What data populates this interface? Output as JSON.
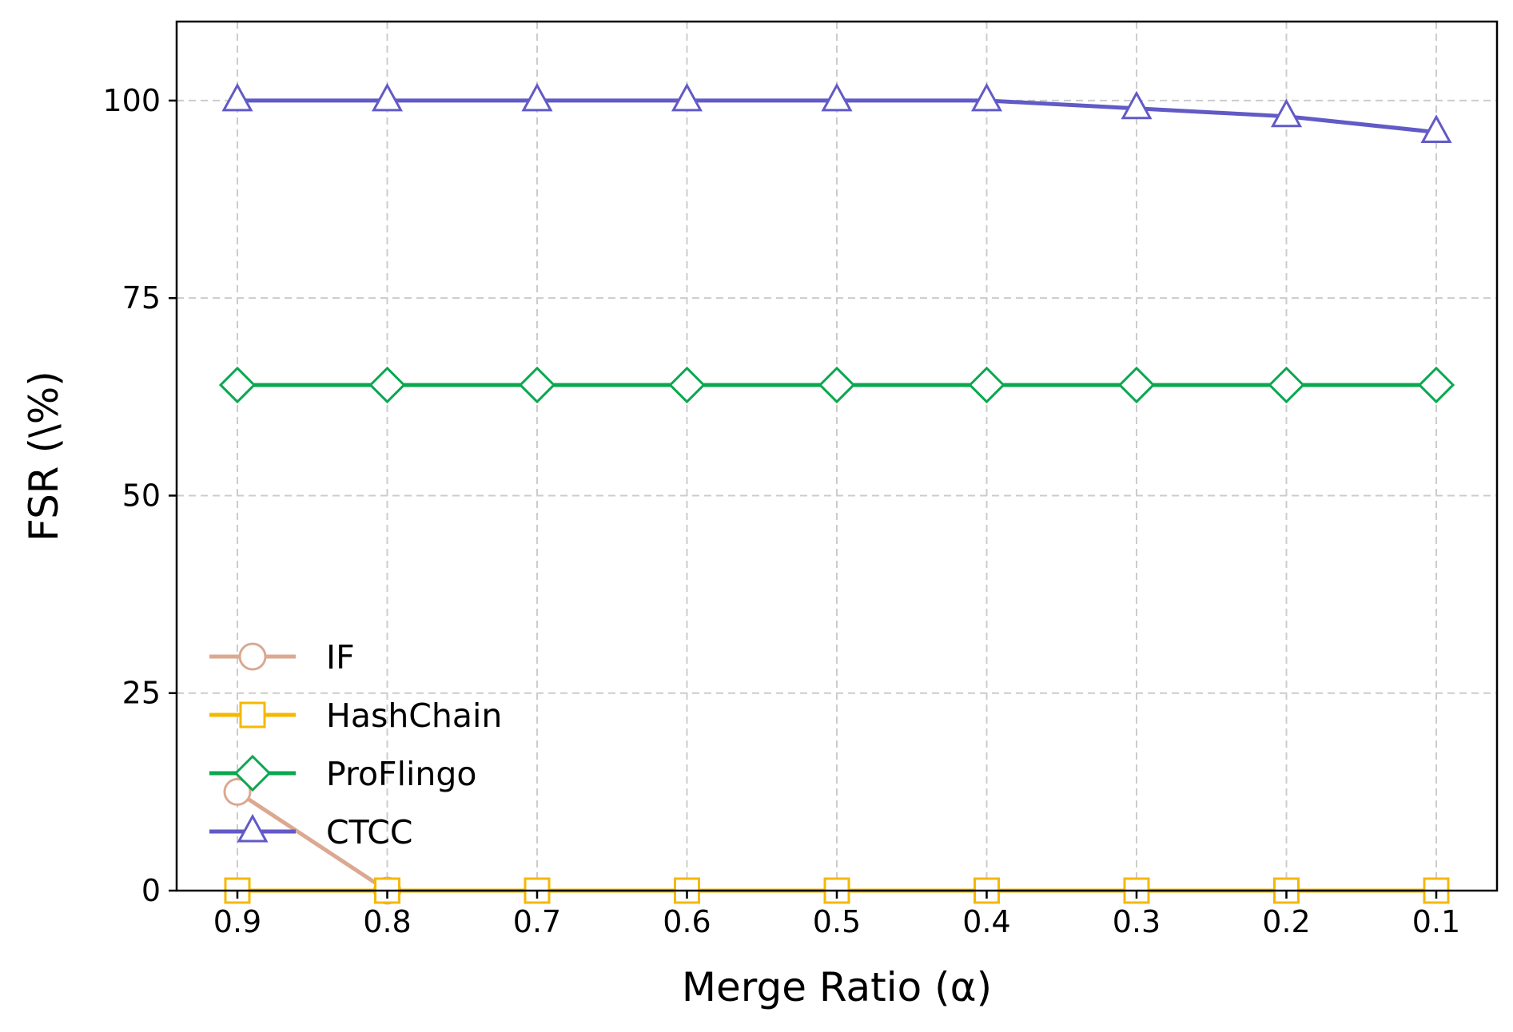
{
  "chart_data": {
    "type": "line",
    "xlabel": "Merge Ratio (α)",
    "ylabel": "FSR (\\%)",
    "x": [
      0.9,
      0.8,
      0.7,
      0.6,
      0.5,
      0.4,
      0.3,
      0.2,
      0.1
    ],
    "x_tick_labels": [
      "0.9",
      "0.8",
      "0.7",
      "0.6",
      "0.5",
      "0.4",
      "0.3",
      "0.2",
      "0.1"
    ],
    "x_reversed": true,
    "ylim": [
      0,
      110
    ],
    "y_ticks": [
      0,
      25,
      50,
      75,
      100
    ],
    "y_tick_labels": [
      "0",
      "25",
      "50",
      "75",
      "100"
    ],
    "grid": true,
    "legend_position": "lower-left",
    "series": [
      {
        "name": "IF",
        "color": "#dba891",
        "marker": "circle",
        "values": [
          12.5,
          0,
          null,
          null,
          null,
          null,
          null,
          null,
          null
        ]
      },
      {
        "name": "HashChain",
        "color": "#f5b800",
        "marker": "square",
        "values": [
          0,
          0,
          0,
          0,
          0,
          0,
          0,
          0,
          0
        ]
      },
      {
        "name": "ProFlingo",
        "color": "#0aa84f",
        "marker": "diamond",
        "values": [
          64,
          64,
          64,
          64,
          64,
          64,
          64,
          64,
          64
        ]
      },
      {
        "name": "CTCC",
        "color": "#625ac6",
        "marker": "triangle",
        "values": [
          100,
          100,
          100,
          100,
          100,
          100,
          99,
          98,
          96
        ]
      }
    ]
  }
}
